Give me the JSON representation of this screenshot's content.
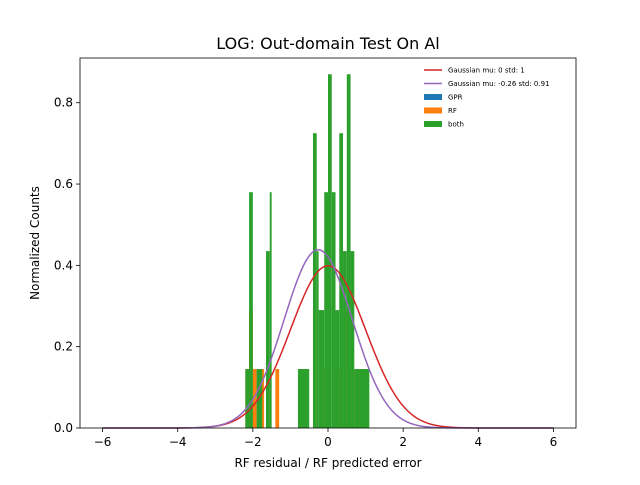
{
  "chart_data": {
    "type": "histogram",
    "title": "LOG: Out-domain Test On Al",
    "xlabel": "RF residual / RF predicted error",
    "ylabel": "Normalized Counts",
    "xlim": [
      -6.6,
      6.6
    ],
    "ylim": [
      0,
      0.91
    ],
    "xticks": [
      -6,
      -4,
      -2,
      0,
      2,
      4,
      6
    ],
    "xtick_labels": [
      "−6",
      "−4",
      "−2",
      "0",
      "2",
      "4",
      "6"
    ],
    "yticks": [
      0.0,
      0.2,
      0.4,
      0.6,
      0.8
    ],
    "ytick_labels": [
      "0.0",
      "0.2",
      "0.4",
      "0.6",
      "0.8"
    ],
    "grid": false,
    "legend_position": "top-right",
    "colors": {
      "gaussian_standard": "#d62728",
      "gaussian_fit": "#9467bd",
      "GPR": "#1f77b4",
      "RF": "#ff7f0e",
      "both": "#2ca02c"
    },
    "series": [
      {
        "name": "Gaussian mu: 0 std: 1",
        "kind": "line",
        "mu": 0,
        "std": 1,
        "color": "#d62728"
      },
      {
        "name": "Gaussian mu: -0.26 std: 0.91",
        "kind": "line",
        "mu": -0.26,
        "std": 0.91,
        "color": "#9467bd"
      },
      {
        "name": "GPR",
        "kind": "bars",
        "color": "#1f77b4",
        "bars": []
      },
      {
        "name": "RF",
        "kind": "bars",
        "color": "#ff7f0e",
        "bars": [
          [
            -2.2,
            -2.1,
            0.145
          ],
          [
            -2.1,
            -2.0,
            0.29
          ],
          [
            -2.0,
            -1.9,
            0.145
          ],
          [
            -1.8,
            -1.7,
            0.145
          ],
          [
            -1.65,
            -1.55,
            0.145
          ],
          [
            -1.4,
            -1.3,
            0.145
          ],
          [
            -0.75,
            -0.55,
            0.145
          ],
          [
            -0.4,
            -0.3,
            0.29
          ],
          [
            -0.2,
            0.0,
            0.145
          ],
          [
            0.2,
            0.35,
            0.145
          ],
          [
            0.45,
            0.55,
            0.29
          ],
          [
            0.6,
            0.7,
            0.145
          ],
          [
            0.75,
            0.85,
            0.145
          ],
          [
            0.9,
            1.05,
            0.145
          ]
        ]
      },
      {
        "name": "both",
        "kind": "bars",
        "color": "#2ca02c",
        "bars": [
          [
            -2.2,
            -2.1,
            0.145
          ],
          [
            -2.1,
            -2.0,
            0.58
          ],
          [
            -1.9,
            -1.75,
            0.145
          ],
          [
            -1.65,
            -1.55,
            0.435
          ],
          [
            -1.55,
            -1.5,
            0.58
          ],
          [
            -0.8,
            -0.5,
            0.145
          ],
          [
            -0.4,
            -0.3,
            0.725
          ],
          [
            -0.3,
            -0.25,
            0.435
          ],
          [
            -0.25,
            -0.1,
            0.29
          ],
          [
            -0.1,
            0.0,
            0.58
          ],
          [
            0.0,
            0.1,
            0.87
          ],
          [
            0.1,
            0.2,
            0.58
          ],
          [
            0.2,
            0.3,
            0.29
          ],
          [
            0.3,
            0.4,
            0.725
          ],
          [
            0.4,
            0.5,
            0.435
          ],
          [
            0.5,
            0.6,
            0.87
          ],
          [
            0.6,
            0.7,
            0.435
          ],
          [
            0.7,
            0.85,
            0.145
          ],
          [
            0.85,
            1.1,
            0.145
          ]
        ]
      }
    ]
  }
}
